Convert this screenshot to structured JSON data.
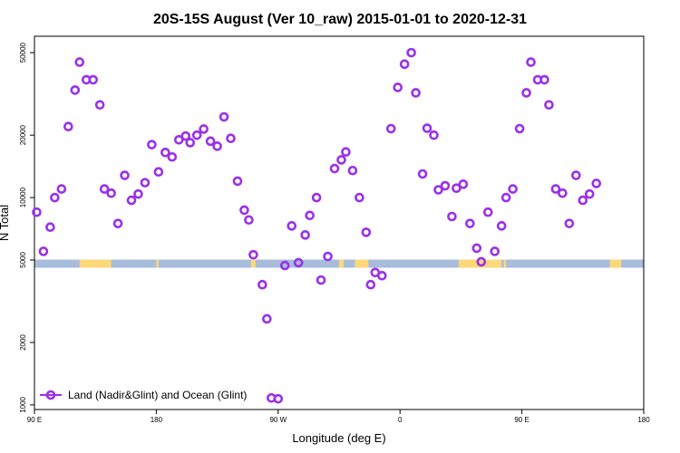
{
  "chart_data": {
    "type": "scatter",
    "title": "20S-15S August (Ver 10_raw)   2015-01-01 to 2020-12-31",
    "xlabel": "Longitude (deg E)",
    "ylabel": "N Total",
    "xlim": [
      -90,
      180
    ],
    "ylim": [
      950,
      60000
    ],
    "yscale": "log",
    "xticks": [
      {
        "value": -90,
        "label": "90 E"
      },
      {
        "value": -36,
        "label": "180"
      },
      {
        "value": 18,
        "label": "90 W"
      },
      {
        "value": 72,
        "label": "0"
      },
      {
        "value": 126,
        "label": "90 E"
      },
      {
        "value": 180,
        "label": "180"
      }
    ],
    "yticks": [
      {
        "value": 1000,
        "label": "1000"
      },
      {
        "value": 2000,
        "label": "2000"
      },
      {
        "value": 5000,
        "label": "5000"
      },
      {
        "value": 10000,
        "label": "10000"
      },
      {
        "value": 20000,
        "label": "20000"
      },
      {
        "value": 50000,
        "label": "50000"
      }
    ],
    "band": {
      "y": 4800,
      "base_color": "#a8bcdc",
      "land_color": "#fdd87a",
      "land_segments": [
        [
          -70,
          -56
        ],
        [
          -36,
          -35
        ],
        [
          6,
          8
        ],
        [
          45,
          47
        ],
        [
          52,
          58
        ],
        [
          98,
          117
        ],
        [
          118,
          119
        ],
        [
          165,
          170
        ]
      ]
    },
    "series": [
      {
        "name": "Land (Nadir&Glint) and Ocean (Glint)",
        "color": "#9b30e8",
        "points": [
          [
            -89,
            8500
          ],
          [
            -86,
            5500
          ],
          [
            -83,
            7200
          ],
          [
            -81,
            10000
          ],
          [
            -78,
            11000
          ],
          [
            -75,
            22000
          ],
          [
            -72,
            33000
          ],
          [
            -70,
            45000
          ],
          [
            -67,
            37000
          ],
          [
            -64,
            37000
          ],
          [
            -61,
            28000
          ],
          [
            -59,
            11000
          ],
          [
            -56,
            10500
          ],
          [
            -53,
            7500
          ],
          [
            -50,
            12800
          ],
          [
            -47,
            9700
          ],
          [
            -44,
            10400
          ],
          [
            -41,
            11800
          ],
          [
            -38,
            18000
          ],
          [
            -35,
            13300
          ],
          [
            -32,
            16500
          ],
          [
            -29,
            15700
          ],
          [
            -26,
            19000
          ],
          [
            -23,
            19800
          ],
          [
            -21,
            18400
          ],
          [
            -18,
            20000
          ],
          [
            -15,
            21400
          ],
          [
            -12,
            18700
          ],
          [
            -9,
            17700
          ],
          [
            -6,
            24500
          ],
          [
            -3,
            19300
          ],
          [
            0,
            12000
          ],
          [
            3,
            8700
          ],
          [
            5,
            7800
          ],
          [
            7,
            5300
          ],
          [
            11,
            3800
          ],
          [
            13,
            2600
          ],
          [
            15,
            1080
          ],
          [
            18,
            1070
          ],
          [
            21,
            4700
          ],
          [
            24,
            7300
          ],
          [
            27,
            4850
          ],
          [
            30,
            6600
          ],
          [
            32,
            8200
          ],
          [
            35,
            10000
          ],
          [
            37,
            4000
          ],
          [
            40,
            5200
          ],
          [
            43,
            13800
          ],
          [
            46,
            15200
          ],
          [
            48,
            16600
          ],
          [
            51,
            13500
          ],
          [
            54,
            10000
          ],
          [
            57,
            6800
          ],
          [
            59,
            3800
          ],
          [
            61,
            4350
          ],
          [
            64,
            4200
          ],
          [
            68,
            21500
          ],
          [
            71,
            34000
          ],
          [
            74,
            44000
          ],
          [
            77,
            50000
          ],
          [
            79,
            32000
          ],
          [
            82,
            13000
          ],
          [
            84,
            21600
          ],
          [
            87,
            20000
          ],
          [
            89,
            10900
          ],
          [
            92,
            11400
          ],
          [
            95,
            8100
          ],
          [
            97,
            11100
          ],
          [
            100,
            11600
          ],
          [
            103,
            7500
          ],
          [
            106,
            5700
          ],
          [
            108,
            4900
          ],
          [
            111,
            8500
          ],
          [
            114,
            5500
          ],
          [
            117,
            7300
          ],
          [
            119,
            10000
          ],
          [
            122,
            11000
          ],
          [
            125,
            21500
          ],
          [
            128,
            32000
          ],
          [
            130,
            45000
          ],
          [
            133,
            37000
          ],
          [
            136,
            37000
          ],
          [
            138,
            28000
          ],
          [
            141,
            11000
          ],
          [
            144,
            10500
          ],
          [
            147,
            7500
          ],
          [
            150,
            12800
          ],
          [
            153,
            9700
          ],
          [
            156,
            10400
          ],
          [
            159,
            11700
          ]
        ]
      }
    ],
    "legend": {
      "position": "bottom-left"
    },
    "grid": false
  }
}
